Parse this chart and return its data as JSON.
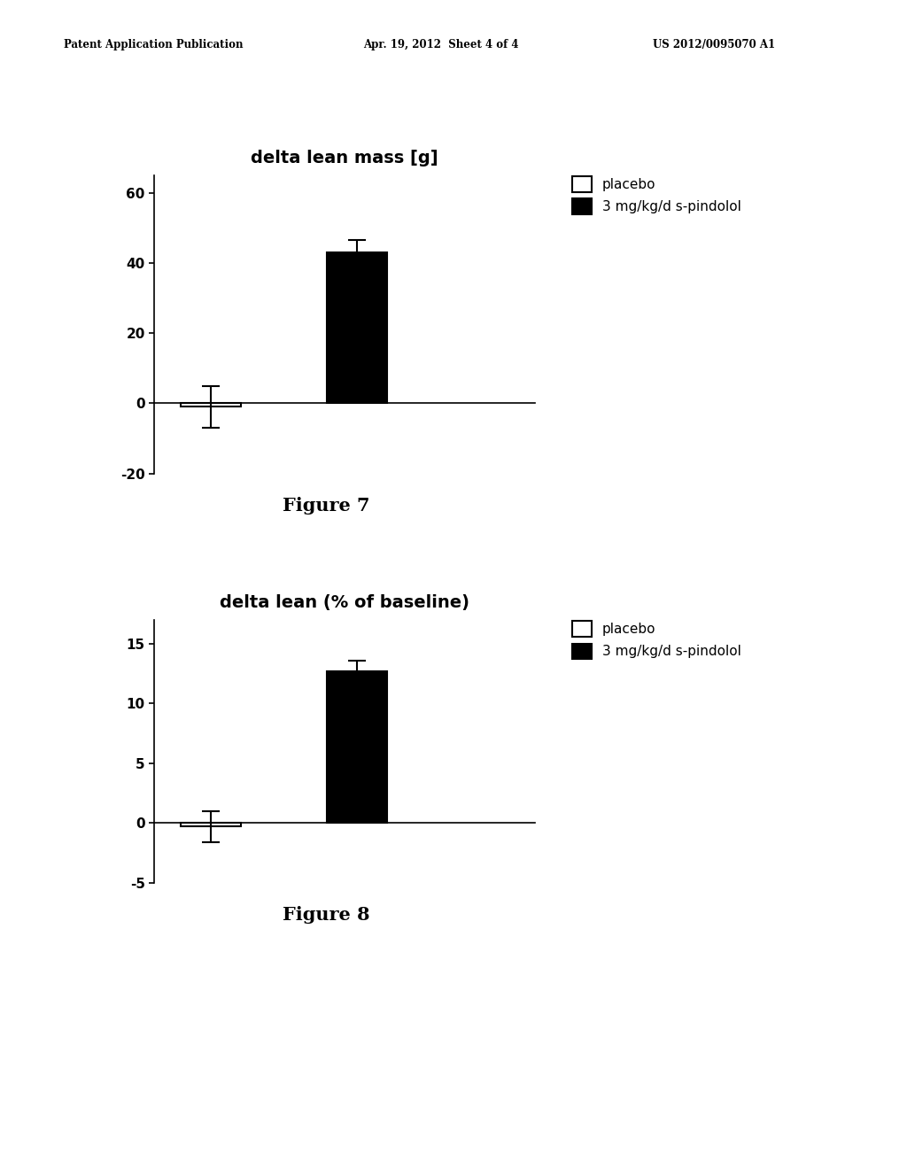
{
  "fig_width": 10.24,
  "fig_height": 13.2,
  "background_color": "#ffffff",
  "header_left": "Patent Application Publication",
  "header_mid": "Apr. 19, 2012  Sheet 4 of 4",
  "header_right": "US 2012/0095070 A1",
  "fig7": {
    "title": "delta lean mass [g]",
    "values": [
      -1.0,
      43.0
    ],
    "errors": [
      6.0,
      3.5
    ],
    "bar_colors": [
      "#ffffff",
      "#000000"
    ],
    "bar_edgecolors": [
      "#000000",
      "#000000"
    ],
    "ylim": [
      -20,
      65
    ],
    "yticks": [
      -20,
      0,
      20,
      40,
      60
    ],
    "legend_labels": [
      "placebo",
      "3 mg/kg/d s-pindolol"
    ],
    "figure_label": "Figure 7"
  },
  "fig8": {
    "title": "delta lean (% of baseline)",
    "values": [
      -0.3,
      12.7
    ],
    "errors": [
      1.3,
      0.9
    ],
    "bar_colors": [
      "#ffffff",
      "#000000"
    ],
    "bar_edgecolors": [
      "#000000",
      "#000000"
    ],
    "ylim": [
      -5,
      17
    ],
    "yticks": [
      -5,
      0,
      5,
      10,
      15
    ],
    "legend_labels": [
      "placebo",
      "3 mg/kg/d s-pindolol"
    ],
    "figure_label": "Figure 8"
  }
}
